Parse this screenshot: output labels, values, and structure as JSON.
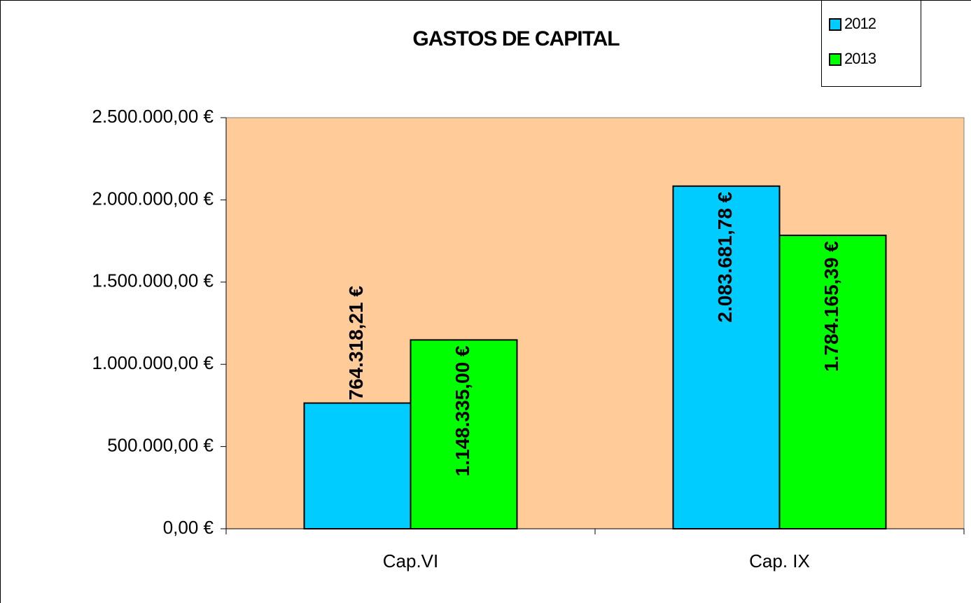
{
  "chart_data": {
    "type": "bar",
    "title": "GASTOS DE CAPITAL",
    "categories": [
      "Cap.VI",
      "Cap. IX"
    ],
    "series": [
      {
        "name": "2012",
        "color": "#00ccff",
        "values": [
          764318.21,
          2083681.78
        ],
        "value_labels": [
          "764.318,21 €",
          "2.083.681,78 €"
        ]
      },
      {
        "name": "2013",
        "color": "#00ff00",
        "values": [
          1148335.0,
          1784165.39
        ],
        "value_labels": [
          "1.148.335,00 €",
          "1.784.165,39 €"
        ]
      }
    ],
    "ylim": [
      0,
      2500000
    ],
    "yticks": [
      {
        "value": 0,
        "label": "0,00 €"
      },
      {
        "value": 500000,
        "label": "500.000,00 €"
      },
      {
        "value": 1000000,
        "label": "1.000.000,00 €"
      },
      {
        "value": 1500000,
        "label": "1.500.000,00 €"
      },
      {
        "value": 2000000,
        "label": "2.000.000,00 €"
      },
      {
        "value": 2500000,
        "label": "2.500.000,00 €"
      }
    ],
    "plot_background": "#ffcc99",
    "legend": "top-right"
  }
}
